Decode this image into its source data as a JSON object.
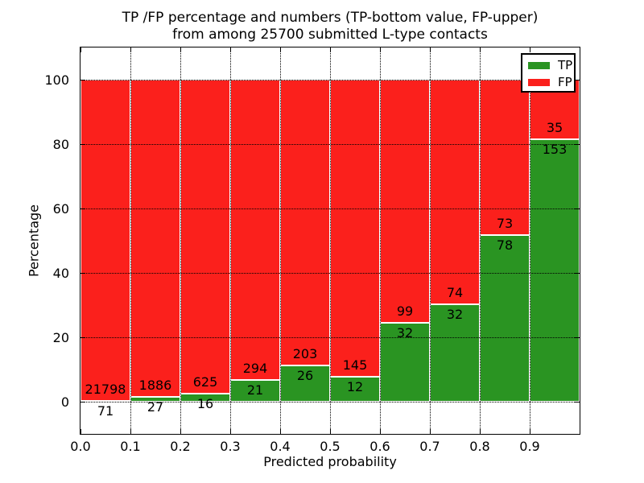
{
  "title": {
    "line1": "TP /FP percentage and numbers (TP-bottom value, FP-upper)",
    "line2": "from among 25700 submitted L-type contacts"
  },
  "axes": {
    "xlabel": "Predicted probability",
    "ylabel": "Percentage",
    "xtick_labels": [
      "0.0",
      "0.1",
      "0.2",
      "0.3",
      "0.4",
      "0.5",
      "0.6",
      "0.7",
      "0.8",
      "0.9"
    ],
    "ytick_labels": [
      "0",
      "20",
      "40",
      "60",
      "80",
      "100"
    ],
    "ytick_values": [
      0,
      20,
      40,
      60,
      80,
      100
    ],
    "xlim": [
      0.0,
      1.0
    ],
    "ylim": [
      -10,
      110
    ],
    "grid_style": "dotted"
  },
  "legend": {
    "position": "upper-right",
    "entries": [
      {
        "label": "TP",
        "color": "#2a9422"
      },
      {
        "label": "FP",
        "color": "#fb201c"
      }
    ]
  },
  "colors": {
    "tp": "#2a9422",
    "fp": "#fb201c",
    "bar_edge": "#ffffff",
    "text": "#000000",
    "background": "#ffffff"
  },
  "chart_data": {
    "type": "bar",
    "stacked": true,
    "normalized": "each bar totals 100 percent; counts annotated on segments",
    "title": "TP /FP percentage and numbers (TP-bottom value, FP-upper) from among 25700 submitted L-type contacts",
    "xlabel": "Predicted probability",
    "ylabel": "Percentage",
    "total_submitted": 25700,
    "bin_starts": [
      0.0,
      0.1,
      0.2,
      0.3,
      0.4,
      0.5,
      0.6,
      0.7,
      0.8,
      0.9
    ],
    "bin_width": 0.1,
    "series": [
      {
        "name": "TP",
        "color": "#2a9422",
        "counts": [
          71,
          27,
          16,
          21,
          26,
          12,
          32,
          32,
          78,
          153
        ]
      },
      {
        "name": "FP",
        "color": "#fb201c",
        "counts": [
          21798,
          1886,
          625,
          294,
          203,
          145,
          99,
          74,
          73,
          35
        ]
      }
    ],
    "tp_percent": [
      0.32,
      1.41,
      2.5,
      6.67,
      11.35,
      7.64,
      24.43,
      30.19,
      51.66,
      81.38
    ],
    "ylim": [
      -10,
      110
    ],
    "grid": true,
    "legend_position": "upper right"
  }
}
